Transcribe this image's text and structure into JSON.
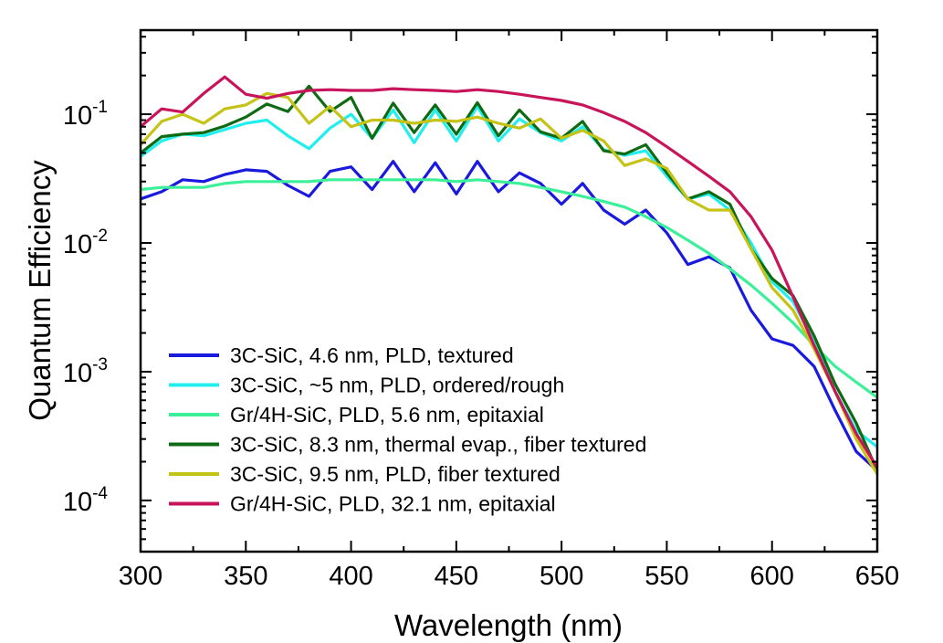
{
  "chart_data": {
    "type": "line",
    "title": "",
    "xlabel": "Wavelength (nm)",
    "ylabel": "Quantum Efficiency",
    "xlim": [
      300,
      650
    ],
    "ylim": [
      4e-05,
      0.45
    ],
    "yscale": "log",
    "grid": false,
    "legend_position": "bottom-left",
    "x_ticks": [
      {
        "value": 300,
        "label": "300"
      },
      {
        "value": 350,
        "label": "350"
      },
      {
        "value": 400,
        "label": "400"
      },
      {
        "value": 450,
        "label": "450"
      },
      {
        "value": 500,
        "label": "500"
      },
      {
        "value": 550,
        "label": "550"
      },
      {
        "value": 600,
        "label": "600"
      },
      {
        "value": 650,
        "label": "650"
      }
    ],
    "y_ticks": [
      {
        "value": 0.1,
        "base": "10",
        "exp": "-1"
      },
      {
        "value": 0.01,
        "base": "10",
        "exp": "-2"
      },
      {
        "value": 0.001,
        "base": "10",
        "exp": "-3"
      },
      {
        "value": 0.0001,
        "base": "10",
        "exp": "-4"
      }
    ],
    "x": [
      300,
      310,
      320,
      330,
      340,
      350,
      360,
      370,
      380,
      390,
      400,
      410,
      420,
      430,
      440,
      450,
      460,
      470,
      480,
      490,
      500,
      510,
      520,
      530,
      540,
      550,
      560,
      570,
      580,
      590,
      600,
      610,
      620,
      630,
      640,
      650
    ],
    "series": [
      {
        "name": "3C-SiC, 4.6 nm, PLD, textured",
        "color": "#1a1adf",
        "values": [
          0.022,
          0.025,
          0.031,
          0.03,
          0.034,
          0.037,
          0.036,
          0.028,
          0.023,
          0.036,
          0.039,
          0.026,
          0.043,
          0.025,
          0.042,
          0.024,
          0.043,
          0.025,
          0.035,
          0.029,
          0.02,
          0.029,
          0.018,
          0.014,
          0.018,
          0.012,
          0.0068,
          0.0078,
          0.0064,
          0.003,
          0.0018,
          0.0016,
          0.0011,
          0.0005,
          0.00024,
          0.00017
        ]
      },
      {
        "name": "3C-SiC, ~5 nm, PLD, ordered/rough",
        "color": "#22eeee",
        "values": [
          0.047,
          0.062,
          0.07,
          0.068,
          0.076,
          0.085,
          0.09,
          0.068,
          0.054,
          0.078,
          0.1,
          0.065,
          0.108,
          0.06,
          0.108,
          0.062,
          0.115,
          0.062,
          0.092,
          0.072,
          0.062,
          0.08,
          0.053,
          0.048,
          0.052,
          0.033,
          0.022,
          0.024,
          0.018,
          0.01,
          0.005,
          0.0035,
          0.0017,
          0.0007,
          0.00035,
          0.00026
        ]
      },
      {
        "name": "Gr/4H-SiC, PLD, 5.6 nm, epitaxial",
        "color": "#3cf09a",
        "values": [
          0.026,
          0.027,
          0.027,
          0.027,
          0.029,
          0.03,
          0.03,
          0.03,
          0.03,
          0.031,
          0.031,
          0.031,
          0.031,
          0.031,
          0.031,
          0.03,
          0.031,
          0.03,
          0.029,
          0.027,
          0.025,
          0.023,
          0.021,
          0.019,
          0.016,
          0.0132,
          0.0105,
          0.0083,
          0.0063,
          0.0047,
          0.0034,
          0.0024,
          0.0016,
          0.0011,
          0.00083,
          0.00063
        ]
      },
      {
        "name": "3C-SiC, 8.3 nm, thermal evap., fiber textured",
        "color": "#0f6a14",
        "values": [
          0.05,
          0.067,
          0.07,
          0.072,
          0.081,
          0.095,
          0.12,
          0.105,
          0.165,
          0.105,
          0.135,
          0.065,
          0.122,
          0.072,
          0.118,
          0.07,
          0.123,
          0.068,
          0.108,
          0.073,
          0.065,
          0.088,
          0.052,
          0.049,
          0.058,
          0.035,
          0.022,
          0.025,
          0.02,
          0.009,
          0.0053,
          0.0039,
          0.0019,
          0.0008,
          0.0004,
          0.00017
        ]
      },
      {
        "name": "3C-SiC, 9.5 nm, PLD, fiber textured",
        "color": "#c6c318",
        "values": [
          0.058,
          0.088,
          0.1,
          0.085,
          0.11,
          0.118,
          0.145,
          0.135,
          0.085,
          0.115,
          0.08,
          0.09,
          0.09,
          0.085,
          0.09,
          0.088,
          0.095,
          0.085,
          0.078,
          0.092,
          0.065,
          0.075,
          0.062,
          0.04,
          0.045,
          0.038,
          0.022,
          0.018,
          0.018,
          0.009,
          0.0045,
          0.003,
          0.0015,
          0.0007,
          0.0003,
          0.00016
        ]
      },
      {
        "name": "Gr/4H-SiC, PLD, 32.1 nm, epitaxial",
        "color": "#c8145a",
        "values": [
          0.08,
          0.11,
          0.104,
          0.145,
          0.195,
          0.143,
          0.133,
          0.145,
          0.153,
          0.155,
          0.153,
          0.153,
          0.158,
          0.155,
          0.153,
          0.15,
          0.155,
          0.15,
          0.143,
          0.135,
          0.128,
          0.118,
          0.103,
          0.088,
          0.072,
          0.056,
          0.043,
          0.033,
          0.025,
          0.016,
          0.0088,
          0.0038,
          0.0016,
          0.0007,
          0.00033,
          0.00018
        ]
      }
    ]
  }
}
